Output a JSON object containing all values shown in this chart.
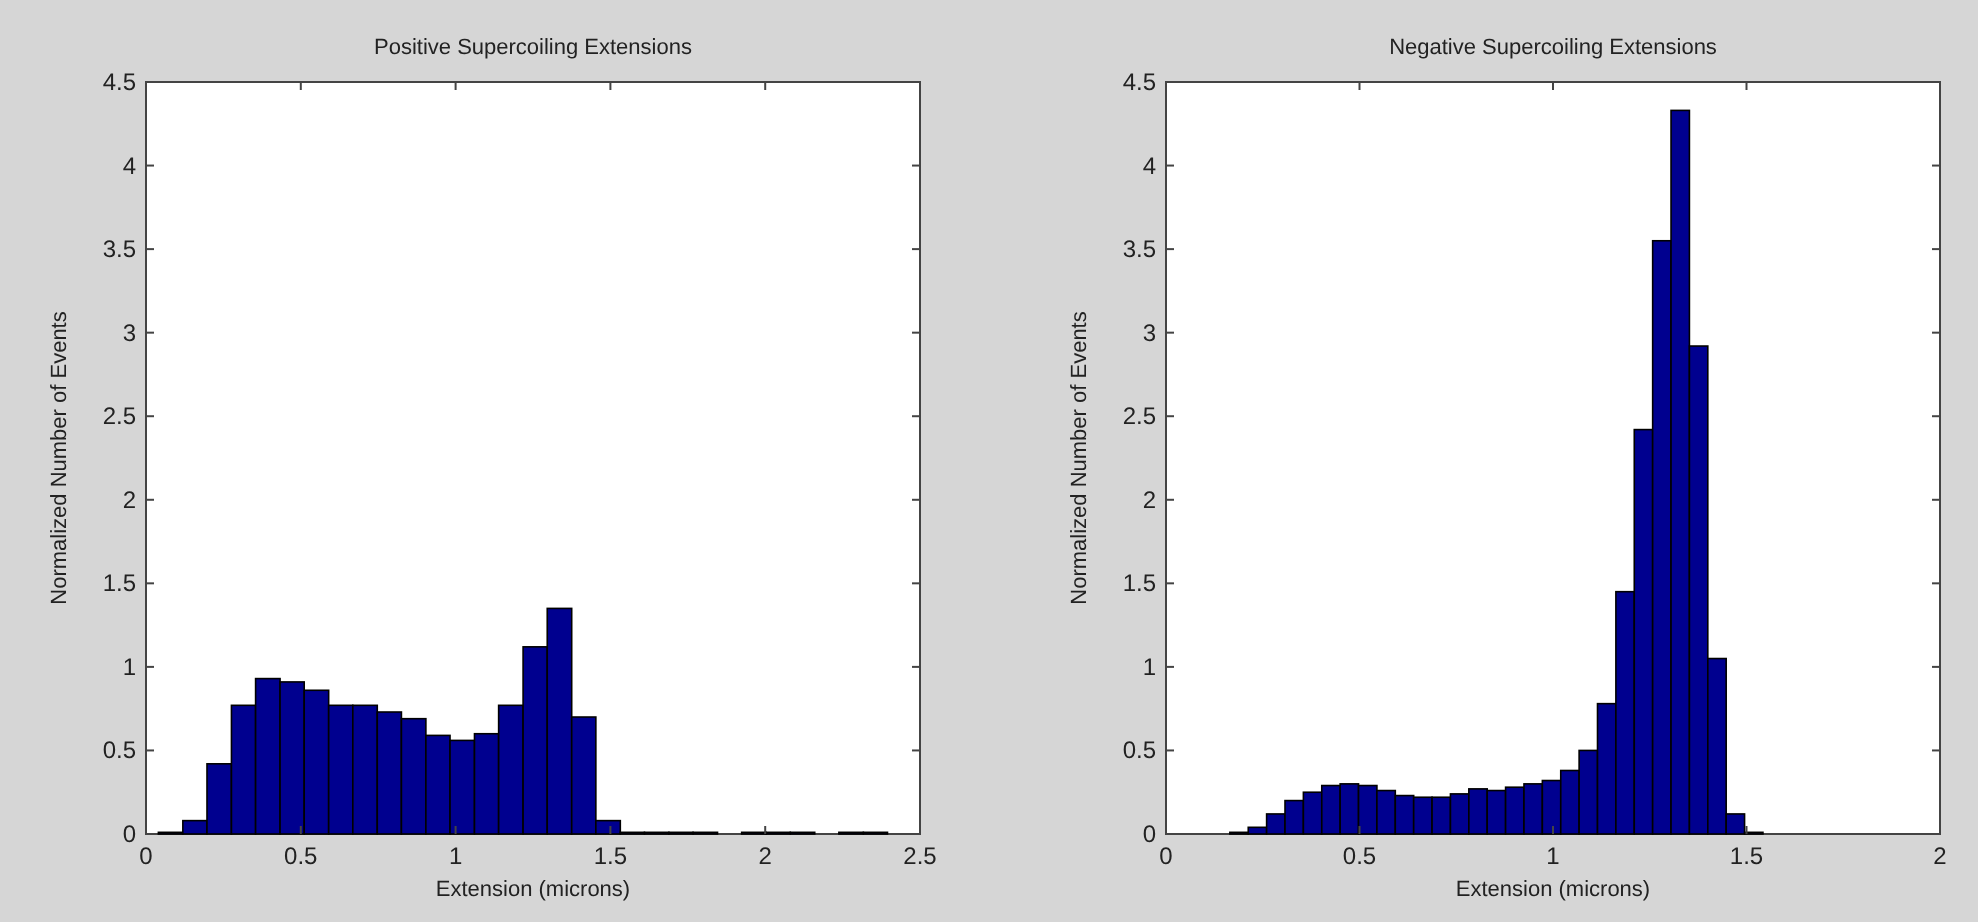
{
  "chart_data": [
    {
      "type": "histogram",
      "title": "Positive Supercoiling Extensions",
      "xlabel": "Extension (microns)",
      "ylabel": "Normalized Number of Events",
      "color": "#00008f",
      "bins": [
        0.04,
        0.119,
        0.197,
        0.276,
        0.354,
        0.433,
        0.511,
        0.59,
        0.668,
        0.747,
        0.825,
        0.904,
        0.982,
        1.061,
        1.139,
        1.218,
        1.296,
        1.375,
        1.453,
        1.532,
        1.61,
        1.689,
        1.767,
        1.846,
        1.924,
        2.003,
        2.081,
        2.16,
        2.238,
        2.317,
        2.395
      ],
      "values": [
        0.01,
        0.08,
        0.42,
        0.77,
        0.93,
        0.91,
        0.86,
        0.77,
        0.77,
        0.73,
        0.69,
        0.59,
        0.56,
        0.6,
        0.77,
        1.12,
        1.35,
        0.7,
        0.08,
        0.01,
        0.01,
        0.01,
        0.01,
        0,
        0.01,
        0.01,
        0.01,
        0,
        0.01,
        0.01
      ],
      "xlim": [
        0,
        2.5
      ],
      "xticks": [
        0,
        0.5,
        1,
        1.5,
        2,
        2.5
      ],
      "ylim": [
        0,
        4.5
      ],
      "yticks": [
        0,
        0.5,
        1,
        1.5,
        2,
        2.5,
        3,
        3.5,
        4,
        4.5
      ]
    },
    {
      "type": "histogram",
      "title": "Negative Supercoiling Extensions",
      "xlabel": "Extension (microns)",
      "ylabel": "Normalized Number of Events",
      "color": "#00008f",
      "bins": [
        0.165,
        0.2125,
        0.26,
        0.3075,
        0.355,
        0.4025,
        0.45,
        0.4975,
        0.545,
        0.5925,
        0.64,
        0.6875,
        0.735,
        0.7825,
        0.83,
        0.8775,
        0.925,
        0.9725,
        1.02,
        1.0675,
        1.115,
        1.1625,
        1.21,
        1.2575,
        1.305,
        1.3525,
        1.4,
        1.4475,
        1.495,
        1.5425
      ],
      "values": [
        0.01,
        0.04,
        0.12,
        0.2,
        0.25,
        0.29,
        0.3,
        0.29,
        0.26,
        0.23,
        0.22,
        0.22,
        0.24,
        0.27,
        0.26,
        0.28,
        0.3,
        0.32,
        0.38,
        0.5,
        0.78,
        1.45,
        2.42,
        3.55,
        4.33,
        2.92,
        1.05,
        0.12,
        0.01
      ],
      "xlim": [
        0,
        2
      ],
      "xticks": [
        0,
        0.5,
        1,
        1.5,
        2
      ],
      "ylim": [
        0,
        4.5
      ],
      "yticks": [
        0,
        0.5,
        1,
        1.5,
        2,
        2.5,
        3,
        3.5,
        4,
        4.5
      ]
    }
  ]
}
